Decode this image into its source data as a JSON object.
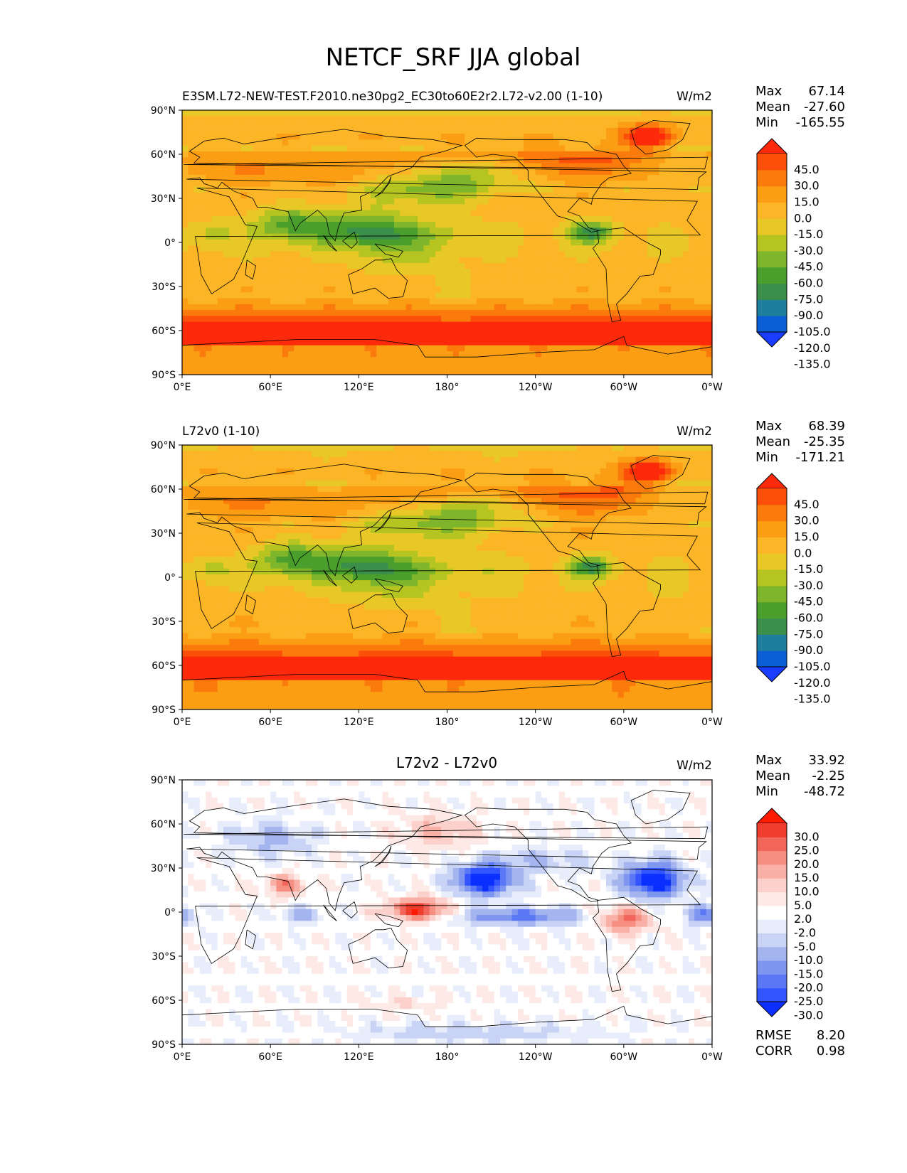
{
  "figure_title": "NETCF_SRF JJA global",
  "colors": {
    "absolute_levels": [
      "#1a3cff",
      "#0a5fd6",
      "#1f7e9e",
      "#3b8f4a",
      "#4a9f2c",
      "#7fb52a",
      "#b5c420",
      "#e8c826",
      "#fbb526",
      "#fb9e14",
      "#fb7a0c",
      "#fb4f0a",
      "#fc2a0a"
    ],
    "diff_levels": [
      "#0a2fff",
      "#3355ff",
      "#5a78f5",
      "#7f96f0",
      "#a4b4ee",
      "#c9d3f5",
      "#e8edfb",
      "#ffffff",
      "#fde9e6",
      "#fcd1cb",
      "#f9b0a6",
      "#f68f82",
      "#f2655a",
      "#ef3d2e",
      "#ff1a00"
    ],
    "land_outline": "#000000"
  },
  "chart_data": [
    {
      "type": "heatmap",
      "name": "panel_test",
      "title_left": "E3SM.L72-NEW-TEST.F2010.ne30pg2_EC30to60E2r2.L72-v2.00 (1-10)",
      "title_center": "",
      "units": "W/m2",
      "x_ticks": [
        "0°E",
        "60°E",
        "120°E",
        "180°",
        "120°W",
        "60°W",
        "0°W"
      ],
      "y_ticks": [
        "90°N",
        "60°N",
        "30°N",
        "0°",
        "30°S",
        "60°S",
        "90°S"
      ],
      "xlim": [
        0,
        360
      ],
      "ylim": [
        -90,
        90
      ],
      "stats": {
        "Max": "67.14",
        "Mean": "-27.60",
        "Min": "-165.55"
      },
      "colorbar_labels": [
        "45.0",
        "30.0",
        "15.0",
        "0.0",
        "-15.0",
        "-30.0",
        "-45.0",
        "-60.0",
        "-75.0",
        "-90.0",
        "-105.0",
        "-120.0",
        "-135.0"
      ]
    },
    {
      "type": "heatmap",
      "name": "panel_ref",
      "title_left": "L72v0 (1-10)",
      "title_center": "",
      "units": "W/m2",
      "x_ticks": [
        "0°E",
        "60°E",
        "120°E",
        "180°",
        "120°W",
        "60°W",
        "0°W"
      ],
      "y_ticks": [
        "90°N",
        "60°N",
        "30°N",
        "0°",
        "30°S",
        "60°S",
        "90°S"
      ],
      "xlim": [
        0,
        360
      ],
      "ylim": [
        -90,
        90
      ],
      "stats": {
        "Max": "68.39",
        "Mean": "-25.35",
        "Min": "-171.21"
      },
      "colorbar_labels": [
        "45.0",
        "30.0",
        "15.0",
        "0.0",
        "-15.0",
        "-30.0",
        "-45.0",
        "-60.0",
        "-75.0",
        "-90.0",
        "-105.0",
        "-120.0",
        "-135.0"
      ]
    },
    {
      "type": "heatmap",
      "name": "panel_diff",
      "title_left": "",
      "title_center": "L72v2 - L72v0",
      "units": "W/m2",
      "x_ticks": [
        "0°E",
        "60°E",
        "120°E",
        "180°",
        "120°W",
        "60°W",
        "0°W"
      ],
      "y_ticks": [
        "90°N",
        "60°N",
        "30°N",
        "0°",
        "30°S",
        "60°S",
        "90°S"
      ],
      "xlim": [
        0,
        360
      ],
      "ylim": [
        -90,
        90
      ],
      "stats": {
        "Max": "33.92",
        "Mean": "-2.25",
        "Min": "-48.72"
      },
      "colorbar_labels": [
        "30.0",
        "25.0",
        "20.0",
        "15.0",
        "10.0",
        "5.0",
        "2.0",
        "-2.0",
        "-5.0",
        "-10.0",
        "-15.0",
        "-20.0",
        "-25.0",
        "-30.0"
      ],
      "rmse": {
        "label": "RMSE",
        "value": "8.20"
      },
      "corr": {
        "label": "CORR",
        "value": "0.98"
      }
    }
  ]
}
